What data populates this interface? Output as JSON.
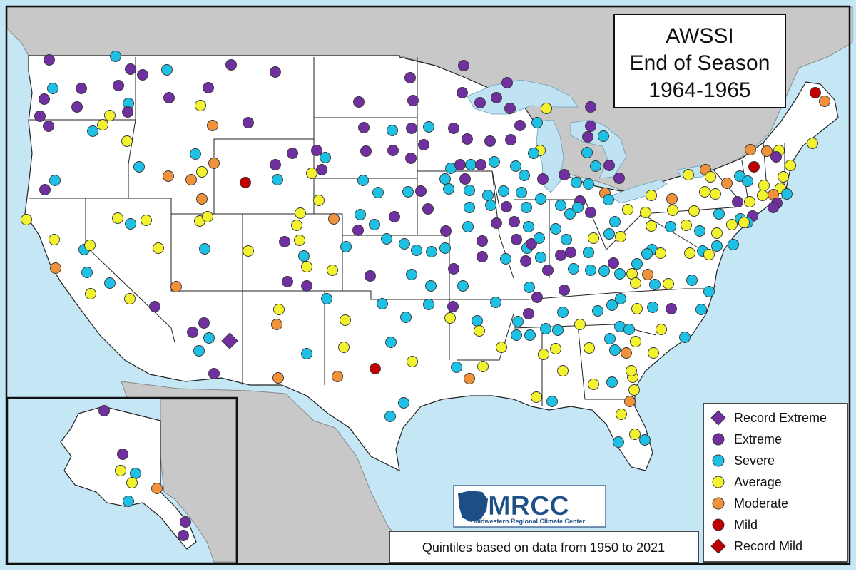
{
  "title": {
    "line1": "AWSSI",
    "line2": "End of Season",
    "line3": "1964-1965"
  },
  "legend": {
    "items": [
      {
        "label": "Record Extreme",
        "color": "#7030a0",
        "shape": "diamond"
      },
      {
        "label": "Extreme",
        "color": "#7030a0",
        "shape": "circle"
      },
      {
        "label": "Severe",
        "color": "#1ec0e4",
        "shape": "circle"
      },
      {
        "label": "Average",
        "color": "#f2f230",
        "shape": "circle"
      },
      {
        "label": "Moderate",
        "color": "#f0923c",
        "shape": "circle"
      },
      {
        "label": "Mild",
        "color": "#c00000",
        "shape": "circle"
      },
      {
        "label": "Record Mild",
        "color": "#c00000",
        "shape": "diamond"
      }
    ]
  },
  "footnote": "Quintiles based on data from 1950 to 2021",
  "logo": {
    "wordmark": "MRCC",
    "subtitle": "Midwestern Regional Climate Center"
  }
}
